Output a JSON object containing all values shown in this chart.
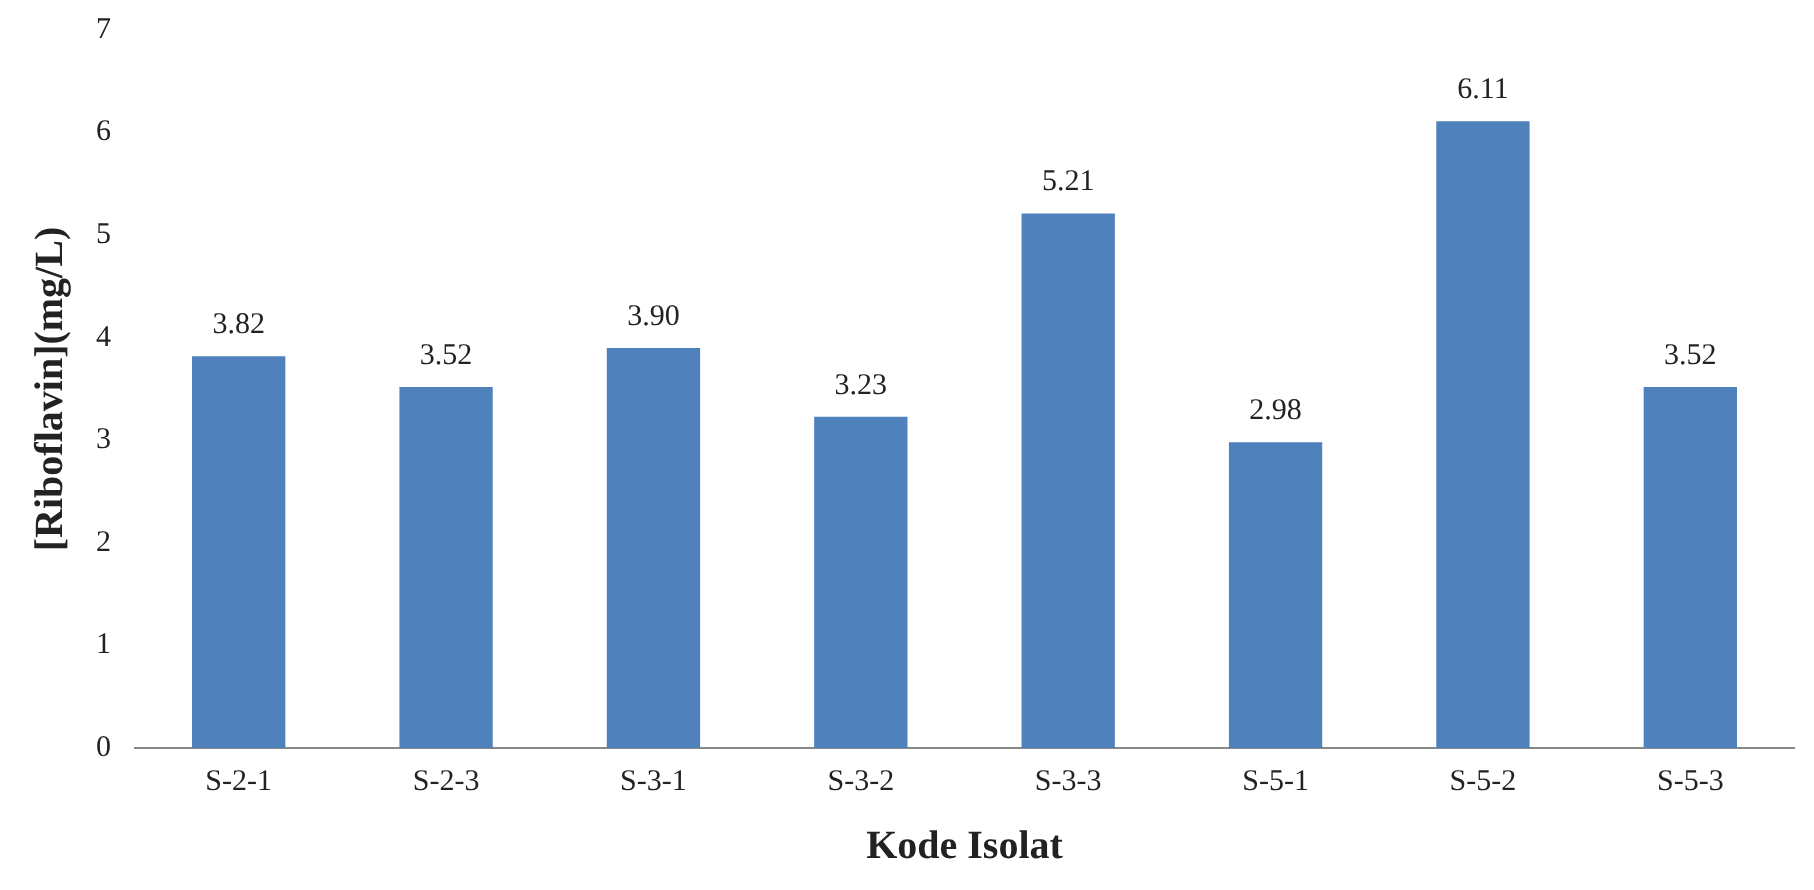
{
  "chart_data": {
    "type": "bar",
    "xlabel": "Kode Isolat",
    "ylabel": "[Riboflavin](mg/L)",
    "categories": [
      "S-2-1",
      "S-2-3",
      "S-3-1",
      "S-3-2",
      "S-3-3",
      "S-5-1",
      "S-5-2",
      "S-5-3"
    ],
    "values": [
      3.82,
      3.52,
      3.9,
      3.23,
      5.21,
      2.98,
      6.11,
      3.52
    ],
    "value_labels": [
      "3.82",
      "3.52",
      "3.90",
      "3.23",
      "5.21",
      "2.98",
      "6.11",
      "3.52"
    ],
    "color": "#4f81bd",
    "ylim": [
      0,
      7
    ],
    "yticks": [
      0,
      1,
      2,
      3,
      4,
      5,
      6,
      7
    ],
    "grid": false,
    "legend": false
  }
}
